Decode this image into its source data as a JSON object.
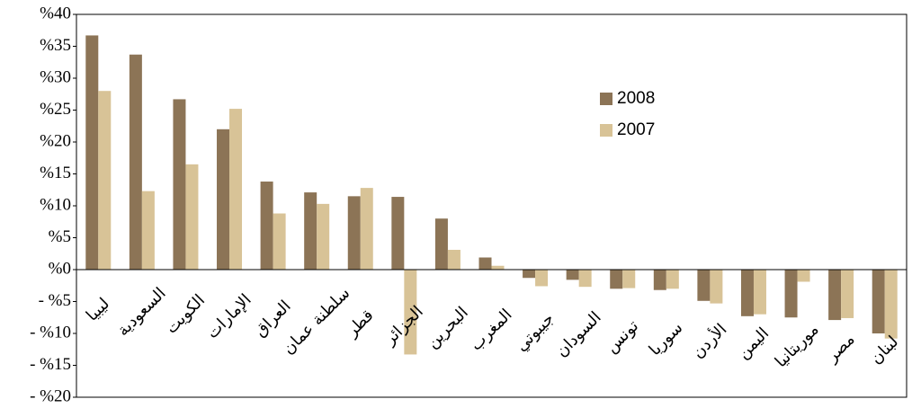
{
  "chart_data": {
    "type": "bar",
    "categories": [
      "ليبيا",
      "السعودية",
      "الكويت",
      "الإمارات",
      "العراق",
      "سلطنة عمان",
      "قطر",
      "الجزائر",
      "البحرين",
      "المغرب",
      "جيبوتي",
      "السودان",
      "تونس",
      "سوريا",
      "الأردن",
      "اليمن",
      "موريتانيا",
      "مصر",
      "لبنان"
    ],
    "series": [
      {
        "name": "2008",
        "color": "#8c7456",
        "values": [
          36.7,
          33.7,
          26.7,
          22,
          13.8,
          12.1,
          11.5,
          11.4,
          8,
          1.9,
          -1.3,
          -1.6,
          -3,
          -3.2,
          -4.9,
          -7.3,
          -7.5,
          -7.9,
          -10
        ]
      },
      {
        "name": "2007",
        "color": "#d8c397",
        "values": [
          28,
          12.3,
          16.5,
          25.2,
          8.8,
          10.3,
          12.8,
          -13.3,
          3.1,
          0.6,
          -2.6,
          -2.7,
          -2.9,
          -3,
          -5.3,
          -7,
          -1.9,
          -7.6,
          -10.8
        ]
      }
    ],
    "ylim": [
      -20,
      40
    ],
    "yticks": [
      {
        "value": -20,
        "label": "- %20"
      },
      {
        "value": -15,
        "label": "- %15"
      },
      {
        "value": -10,
        "label": "- %10"
      },
      {
        "value": -5,
        "label": "- %5"
      },
      {
        "value": 0,
        "label": "%0"
      },
      {
        "value": 5,
        "label": "%5"
      },
      {
        "value": 10,
        "label": "%10"
      },
      {
        "value": 15,
        "label": "%15"
      },
      {
        "value": 20,
        "label": "%20"
      },
      {
        "value": 25,
        "label": "%25"
      },
      {
        "value": 30,
        "label": "%30"
      },
      {
        "value": 35,
        "label": "%35"
      },
      {
        "value": 40,
        "label": "%40"
      }
    ],
    "grid": false,
    "legend": "upper right"
  }
}
